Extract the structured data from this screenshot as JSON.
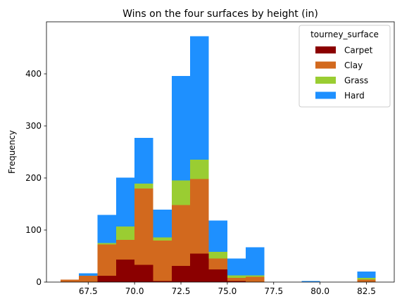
{
  "chart_data": {
    "type": "bar",
    "stacked": true,
    "title": "Wins on the four surfaces by height (in)",
    "xlabel": "",
    "ylabel": "Frequency",
    "xlim": [
      65.25,
      84.0
    ],
    "ylim": [
      0,
      500
    ],
    "x_ticks": [
      "67.5",
      "70.0",
      "72.5",
      "75.0",
      "77.5",
      "80.0",
      "82.5"
    ],
    "y_ticks": [
      "0",
      "100",
      "200",
      "300",
      "400"
    ],
    "bin_edges": [
      66.0,
      67.0,
      68.0,
      69.0,
      70.0,
      71.0,
      72.0,
      73.0,
      74.0,
      75.0,
      76.0,
      77.0,
      78.0,
      79.0,
      80.0,
      81.0,
      82.0,
      83.0
    ],
    "legend_title": "tourney_surface",
    "legend_position": "top-right",
    "grid": false,
    "series": [
      {
        "name": "Carpet",
        "color": "#8b0000",
        "values": [
          0,
          0,
          12,
          43,
          33,
          2,
          31,
          55,
          24,
          2,
          0,
          0,
          0,
          0,
          0,
          0,
          0
        ]
      },
      {
        "name": "Clay",
        "color": "#d2691e",
        "values": [
          5,
          12,
          60,
          38,
          147,
          78,
          117,
          143,
          21,
          6,
          10,
          0,
          0,
          0,
          0,
          0,
          5
        ]
      },
      {
        "name": "Grass",
        "color": "#9acd32",
        "values": [
          0,
          0,
          3,
          26,
          9,
          6,
          47,
          37,
          13,
          5,
          3,
          0,
          0,
          0,
          0,
          0,
          3
        ]
      },
      {
        "name": "Hard",
        "color": "#1e90ff",
        "values": [
          0,
          5,
          54,
          94,
          88,
          53,
          201,
          237,
          60,
          32,
          54,
          0,
          0,
          2,
          0,
          0,
          12
        ]
      }
    ]
  }
}
